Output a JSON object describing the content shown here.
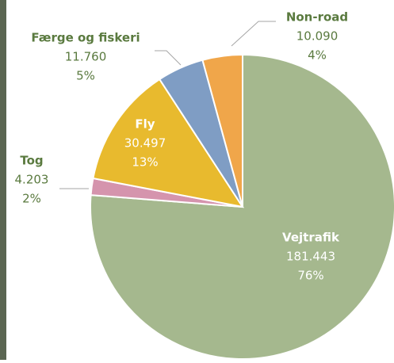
{
  "chart_data": {
    "type": "pie",
    "categories": [
      "Vejtrafik",
      "Tog",
      "Fly",
      "Færge og fiskeri",
      "Non-road"
    ],
    "values": [
      181443,
      4203,
      30497,
      11760,
      10090
    ],
    "value_labels": [
      "181.443",
      "4.203",
      "30.497",
      "11.760",
      "10.090"
    ],
    "percent_labels": [
      "76%",
      "2%",
      "13%",
      "5%",
      "4%"
    ],
    "colors": [
      "#a5b88e",
      "#d594ad",
      "#e8ba2e",
      "#7f9dc4",
      "#f0a64a"
    ]
  }
}
